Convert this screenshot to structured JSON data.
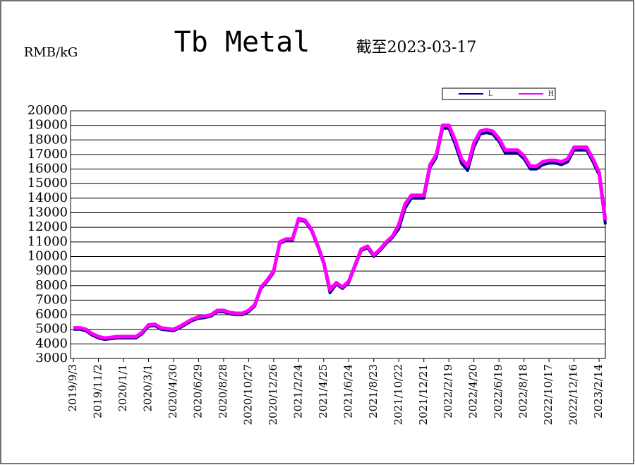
{
  "chart_data": {
    "type": "line",
    "title": "Tb Metal",
    "subtitle": "截至2023-03-17",
    "y_label": "RMB/kG",
    "categories": [
      "2019/9/3",
      null,
      null,
      null,
      "2019/11/2",
      null,
      null,
      null,
      "2020/1/1",
      null,
      null,
      null,
      "2020/3/1",
      null,
      null,
      null,
      "2020/4/30",
      null,
      null,
      null,
      "2020/6/29",
      null,
      null,
      null,
      "2020/8/28",
      null,
      null,
      null,
      "2020/10/27",
      null,
      null,
      null,
      "2020/12/26",
      null,
      null,
      null,
      "2021/2/24",
      null,
      null,
      null,
      "2021/4/25",
      null,
      null,
      null,
      "2021/6/24",
      null,
      null,
      null,
      "2021/8/23",
      null,
      null,
      null,
      "2021/10/22",
      null,
      null,
      null,
      "2021/12/21",
      null,
      null,
      null,
      "2022/2/19",
      null,
      null,
      null,
      "2022/4/20",
      null,
      null,
      null,
      "2022/6/19",
      null,
      null,
      null,
      "2022/8/18",
      null,
      null,
      null,
      "2022/10/17",
      null,
      null,
      null,
      "2022/12/16",
      null,
      null,
      null,
      "2023/2/14",
      null
    ],
    "series": [
      {
        "name": "L",
        "color": "#000080",
        "values": [
          5000,
          5000,
          4900,
          4600,
          4400,
          4300,
          4350,
          4400,
          4400,
          4400,
          4400,
          4700,
          5200,
          5250,
          5000,
          4950,
          4900,
          5100,
          5350,
          5600,
          5750,
          5800,
          5900,
          6200,
          6200,
          6050,
          6000,
          6000,
          6200,
          6600,
          7800,
          8300,
          8900,
          10900,
          11100,
          11100,
          12500,
          12400,
          11800,
          10700,
          9500,
          7500,
          8100,
          7800,
          8200,
          9300,
          10400,
          10600,
          10000,
          10400,
          10900,
          11300,
          11900,
          13300,
          14000,
          14000,
          14000,
          16100,
          16800,
          18800,
          18800,
          17700,
          16400,
          15900,
          17500,
          18400,
          18500,
          18400,
          17900,
          17100,
          17100,
          17100,
          16700,
          16000,
          16000,
          16300,
          16400,
          16400,
          16300,
          16500,
          17300,
          17300,
          17300,
          16500,
          15600,
          12200
        ]
      },
      {
        "name": "H",
        "color": "#ff00ff",
        "values": [
          5100,
          5100,
          5000,
          4700,
          4500,
          4400,
          4450,
          4500,
          4500,
          4500,
          4500,
          4800,
          5300,
          5350,
          5100,
          5050,
          5000,
          5200,
          5450,
          5700,
          5850,
          5900,
          6000,
          6300,
          6300,
          6150,
          6100,
          6100,
          6300,
          6700,
          7900,
          8400,
          9000,
          11000,
          11200,
          11200,
          12600,
          12500,
          11900,
          10800,
          9600,
          7700,
          8200,
          7900,
          8300,
          9400,
          10500,
          10700,
          10100,
          10500,
          11000,
          11400,
          12200,
          13600,
          14200,
          14200,
          14200,
          16300,
          17000,
          19000,
          19000,
          18000,
          16700,
          16200,
          17800,
          18600,
          18700,
          18600,
          18100,
          17300,
          17300,
          17300,
          16900,
          16200,
          16200,
          16500,
          16600,
          16600,
          16500,
          16700,
          17500,
          17500,
          17500,
          16700,
          15800,
          12500
        ]
      }
    ],
    "ylim": [
      3000,
      20000
    ],
    "yticks": [
      3000,
      4000,
      5000,
      6000,
      7000,
      8000,
      9000,
      10000,
      11000,
      12000,
      13000,
      14000,
      15000,
      16000,
      17000,
      18000,
      19000,
      20000
    ],
    "grid": true
  }
}
